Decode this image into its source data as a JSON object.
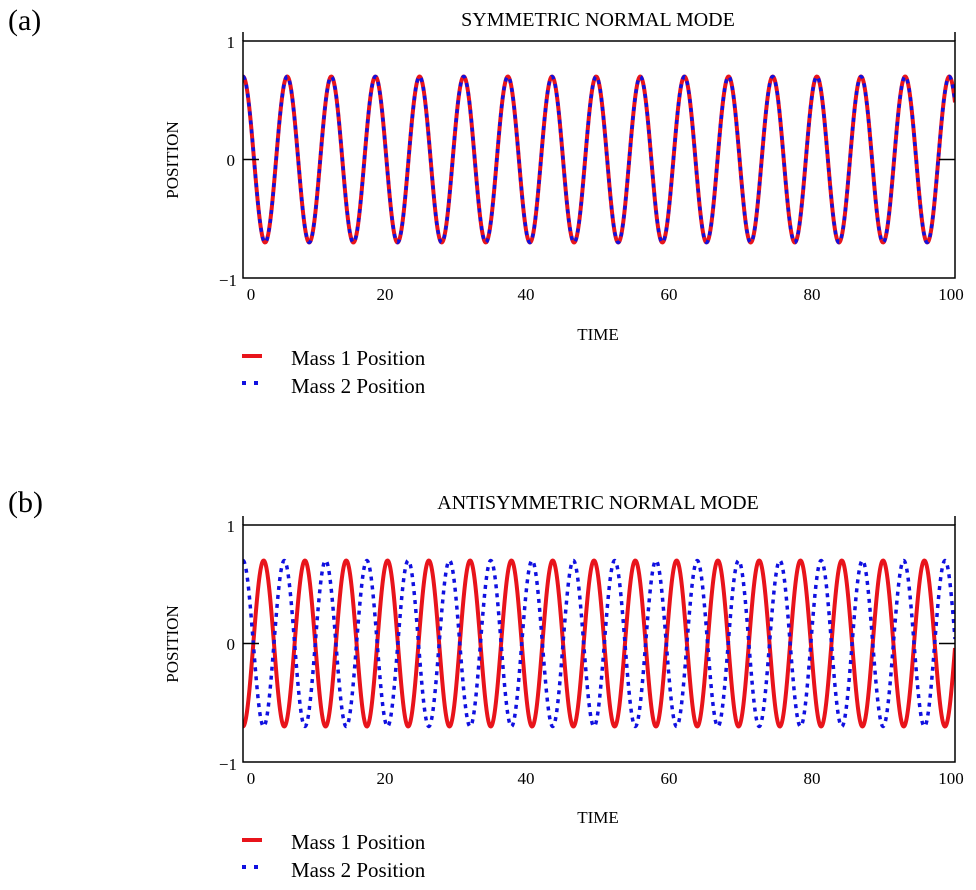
{
  "colors": {
    "mass1": "#e8141b",
    "mass2": "#1010e0",
    "axis": "#000000"
  },
  "panels": [
    {
      "panel_label": "(a)",
      "legend": [
        {
          "label": "Mass 1 Position",
          "style": "solid"
        },
        {
          "label": "Mass 2 Position",
          "style": "dotted"
        }
      ],
      "chart_data": {
        "type": "line",
        "title": "SYMMETRIC NORMAL MODE",
        "xlabel": "TIME",
        "ylabel": "POSITION",
        "xlim": [
          0,
          100
        ],
        "ylim": [
          -1,
          1
        ],
        "xticks": [
          "0",
          "20",
          "40",
          "60",
          "80",
          "100"
        ],
        "yticks": [
          "−1",
          "0",
          "1"
        ],
        "grid": false,
        "legend_position": "below-left",
        "series": [
          {
            "name": "Mass 1 Position",
            "amplitude": 0.7,
            "period": 6.2,
            "phase_at_t0": 0
          },
          {
            "name": "Mass 2 Position",
            "amplitude": 0.7,
            "period": 6.2,
            "phase_at_t0": 0
          }
        ]
      }
    },
    {
      "panel_label": "(b)",
      "legend": [
        {
          "label": "Mass 1 Position",
          "style": "solid"
        },
        {
          "label": "Mass 2 Position",
          "style": "dotted"
        }
      ],
      "chart_data": {
        "type": "line",
        "title": "ANTISYMMETRIC NORMAL MODE",
        "xlabel": "TIME",
        "ylabel": "POSITION",
        "xlim": [
          0,
          100
        ],
        "ylim": [
          -1,
          1
        ],
        "xticks": [
          "0",
          "20",
          "40",
          "60",
          "80",
          "100"
        ],
        "yticks": [
          "−1",
          "0",
          "1"
        ],
        "grid": false,
        "legend_position": "below-left",
        "series": [
          {
            "name": "Mass 1 Position",
            "amplitude": 0.7,
            "period": 5.8,
            "phase_at_t0": 3.1416
          },
          {
            "name": "Mass 2 Position",
            "amplitude": 0.7,
            "period": 5.8,
            "phase_at_t0": 0
          }
        ]
      }
    }
  ]
}
